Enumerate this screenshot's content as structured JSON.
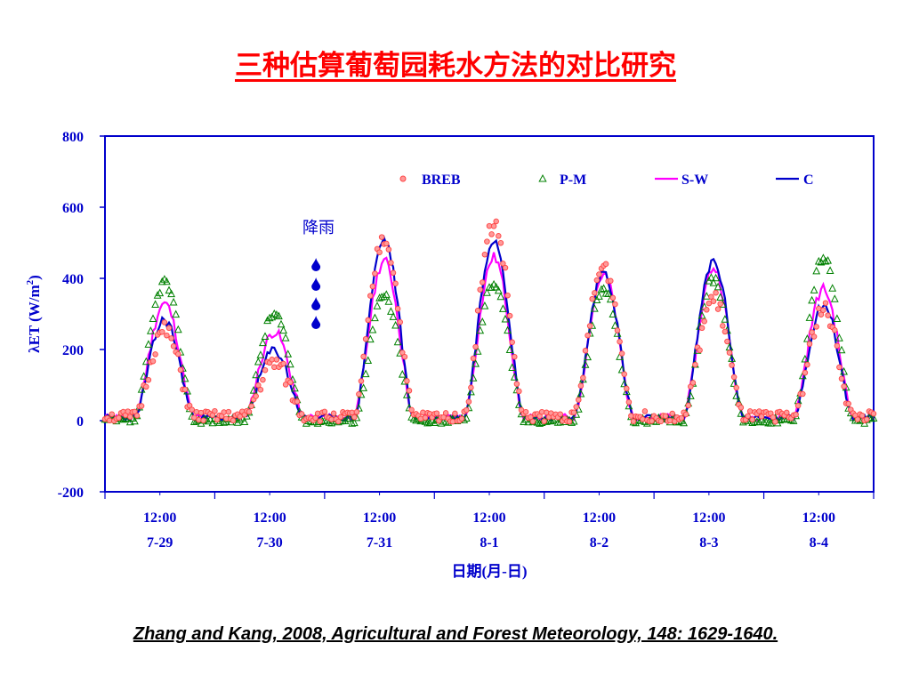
{
  "title": "三种估算葡萄园耗水方法的对比研究",
  "citation": "Zhang and Kang, 2008, Agricultural and Forest Meteorology, 148: 1629-1640.",
  "annotation": "降雨",
  "colors": {
    "title": "#ff0000",
    "axis": "#0000cc",
    "breb": "#ff4444",
    "pm": "#008000",
    "sw": "#ff00ff",
    "c": "#0000cc"
  },
  "icons": [
    "raindrop-icon"
  ],
  "chart_data": {
    "type": "line",
    "title": "",
    "xlabel": "日期(月-日)",
    "ylabel": "λET (W/m²)",
    "ylabel_main": "λET (W/m",
    "ylabel_sup": "2",
    "ylabel_tail": ")",
    "ylim": [
      -200,
      800
    ],
    "yticks": [
      "800",
      "600",
      "400",
      "200",
      "0",
      "-200"
    ],
    "yticks_values": [
      800,
      600,
      400,
      200,
      0,
      -200
    ],
    "xlim_hours": [
      0,
      168
    ],
    "xticks": [
      {
        "time": "12:00",
        "date": "7-29",
        "hour": 12
      },
      {
        "time": "12:00",
        "date": "7-30",
        "hour": 36
      },
      {
        "time": "12:00",
        "date": "7-31",
        "hour": 60
      },
      {
        "time": "12:00",
        "date": "8-1",
        "hour": 84
      },
      {
        "time": "12:00",
        "date": "8-2",
        "hour": 108
      },
      {
        "time": "12:00",
        "date": "8-3",
        "hour": 132
      },
      {
        "time": "12:00",
        "date": "8-4",
        "hour": 156
      }
    ],
    "legend": [
      {
        "name": "BREB",
        "marker": "circle"
      },
      {
        "name": "P-M",
        "marker": "triangle"
      },
      {
        "name": "S-W",
        "marker": "line"
      },
      {
        "name": "C",
        "marker": "line"
      }
    ],
    "legend_position": "top",
    "rain_annotation_hour": 46.5,
    "daily_peaks": {
      "days": [
        "7-29",
        "7-30",
        "7-31",
        "8-1",
        "8-2",
        "8-3",
        "8-4"
      ],
      "BREB": [
        240,
        150,
        500,
        540,
        420,
        330,
        300
      ],
      "P-M": [
        390,
        300,
        350,
        390,
        370,
        400,
        460
      ],
      "S-W": [
        320,
        240,
        440,
        450,
        400,
        420,
        360
      ],
      "C": [
        275,
        190,
        500,
        505,
        410,
        440,
        320
      ]
    }
  }
}
